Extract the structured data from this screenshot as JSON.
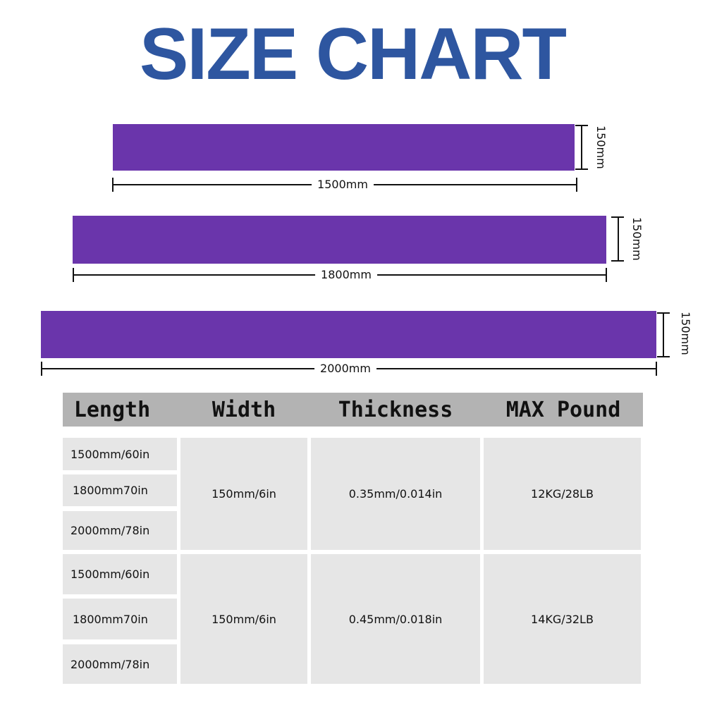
{
  "title": "SIZE CHART",
  "bar_color": "#6a35ab",
  "title_color": "#2e56a0",
  "bands": [
    {
      "length": "1500mm",
      "width": "150mm"
    },
    {
      "length": "1800mm",
      "width": "150mm"
    },
    {
      "length": "2000mm",
      "width": "150mm"
    }
  ],
  "table": {
    "headers": [
      "Length",
      "Width",
      "Thickness",
      "MAX Pound"
    ],
    "groups": [
      {
        "lengths": [
          "1500mm/60in",
          "1800mm70in",
          "2000mm/78in"
        ],
        "width": "150mm/6in",
        "thickness": "0.35mm/0.014in",
        "max_pound": "12KG/28LB"
      },
      {
        "lengths": [
          "1500mm/60in",
          "1800mm70in",
          "2000mm/78in"
        ],
        "width": "150mm/6in",
        "thickness": "0.45mm/0.018in",
        "max_pound": "14KG/32LB"
      }
    ]
  }
}
